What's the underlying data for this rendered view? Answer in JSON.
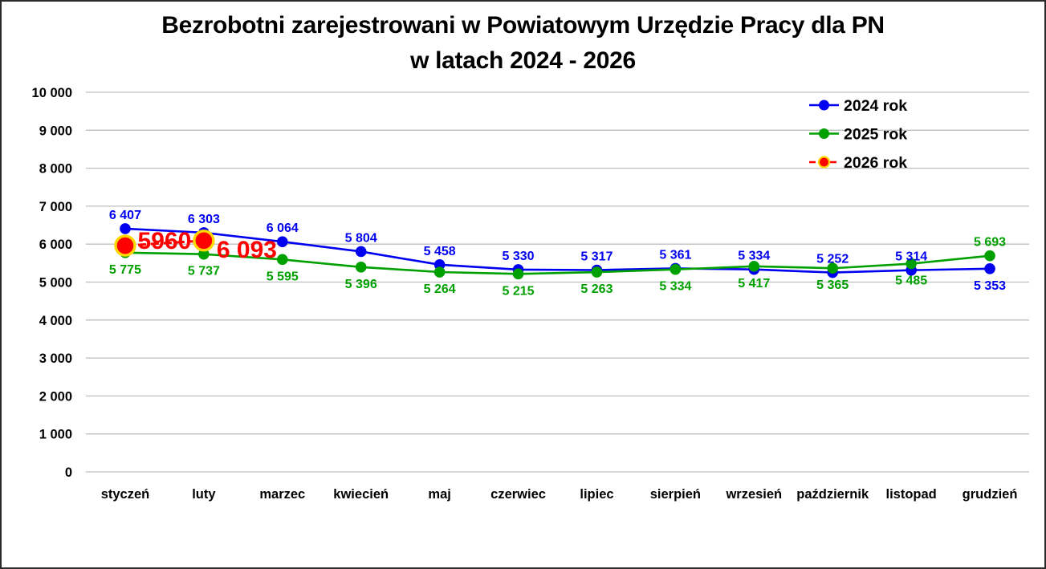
{
  "title": {
    "line1": "Bezrobotni zarejestrowani w Powiatowym Urzędzie Pracy dla PN",
    "line2": "w latach 2024 - 2026"
  },
  "chart_data": {
    "type": "line",
    "title": "Bezrobotni zarejestrowani w Powiatowym Urzędzie Pracy dla PN w latach 2024 - 2026",
    "categories": [
      "styczeń",
      "luty",
      "marzec",
      "kwiecień",
      "maj",
      "czerwiec",
      "lipiec",
      "sierpień",
      "wrzesień",
      "październik",
      "listopad",
      "grudzień"
    ],
    "ylim": [
      0,
      10000
    ],
    "ytick_step": 1000,
    "ytick_labels": [
      "0",
      "1 000",
      "2 000",
      "3 000",
      "4 000",
      "5 000",
      "6 000",
      "7 000",
      "8 000",
      "9 000",
      "10 000"
    ],
    "grid": true,
    "gridline_color": "#BFBFBF",
    "legend_position": "top-right",
    "series": [
      {
        "name": "2024 rok",
        "color": "#0000F0",
        "line_style": "solid",
        "highlight": false,
        "values": [
          6407,
          6303,
          6064,
          5804,
          5458,
          5330,
          5317,
          5361,
          5334,
          5252,
          5314,
          5353
        ],
        "labels": [
          "6 407",
          "6 303",
          "6 064",
          "5 804",
          "5 458",
          "5 330",
          "5 317",
          "5 361",
          "5 334",
          "5 252",
          "5 314",
          "5 353"
        ],
        "label_positions": [
          "above",
          "above",
          "above",
          "above",
          "above",
          "above",
          "above",
          "above",
          "above",
          "above",
          "above",
          "below"
        ]
      },
      {
        "name": "2025 rok",
        "color": "#00A000",
        "line_style": "solid",
        "highlight": false,
        "values": [
          5775,
          5737,
          5595,
          5396,
          5264,
          5215,
          5263,
          5334,
          5417,
          5365,
          5485,
          5693
        ],
        "labels": [
          "5 775",
          "5 737",
          "5 595",
          "5 396",
          "5 264",
          "5 215",
          "5 263",
          "5 334",
          "5 417",
          "5 365",
          "5 485",
          "5 693"
        ],
        "label_positions": [
          "below",
          "below",
          "below",
          "below",
          "below",
          "below",
          "below",
          "below",
          "below",
          "below",
          "below",
          "above"
        ]
      },
      {
        "name": "2026 rok",
        "color": "#FF0000",
        "marker_ring_color": "#FFD700",
        "line_style": "dashed",
        "highlight": true,
        "values": [
          5960,
          6093,
          null,
          null,
          null,
          null,
          null,
          null,
          null,
          null,
          null,
          null
        ],
        "labels": [
          "5960",
          "6 093"
        ],
        "label_positions": [
          "on-line-mid",
          "right-of-point"
        ]
      }
    ]
  }
}
